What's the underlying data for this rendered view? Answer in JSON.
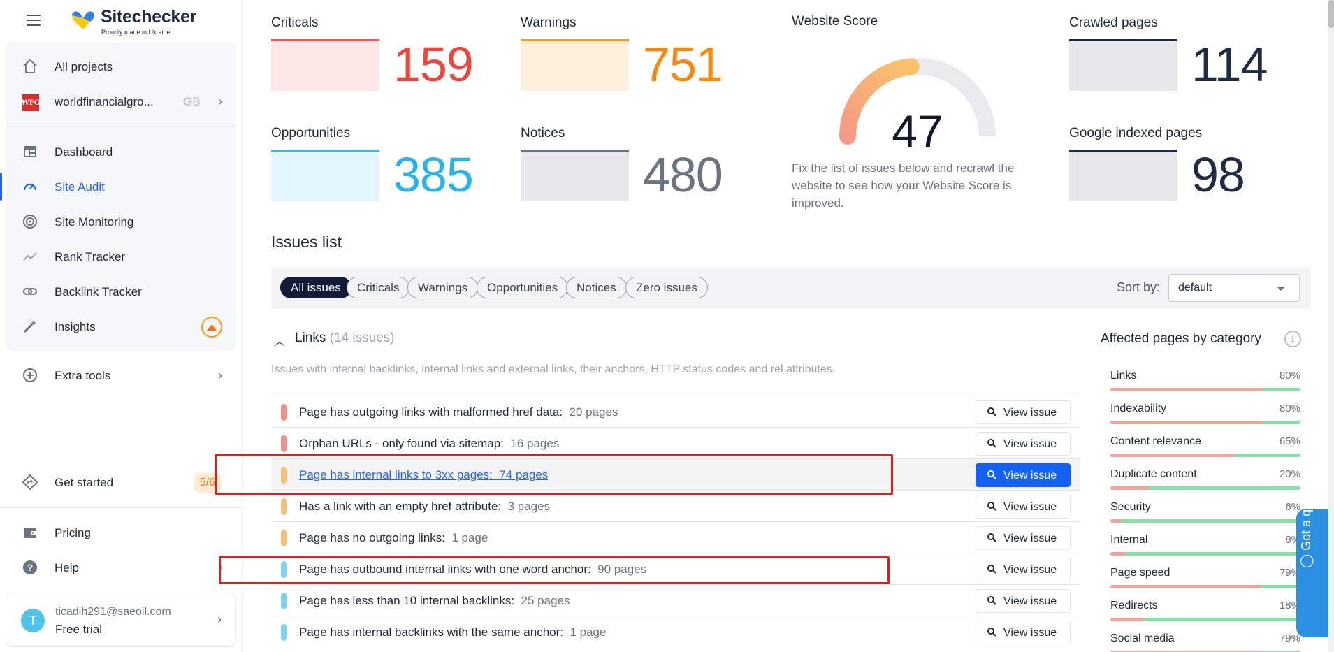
{
  "brand": {
    "name": "Sitechecker",
    "tagline": "Proudly made in Ukraine"
  },
  "sidebar": {
    "all_projects": "All projects",
    "project": {
      "name": "worldfinancialgro...",
      "region": "GB",
      "logo_text": "WFG"
    },
    "nav": [
      {
        "label": "Dashboard",
        "icon": "dashboard-icon"
      },
      {
        "label": "Site Audit",
        "icon": "gauge-icon",
        "active": true
      },
      {
        "label": "Site Monitoring",
        "icon": "monitoring-icon"
      },
      {
        "label": "Rank Tracker",
        "icon": "rank-icon"
      },
      {
        "label": "Backlink Tracker",
        "icon": "link-icon"
      },
      {
        "label": "Insights",
        "icon": "magic-wand-icon"
      }
    ],
    "extra_tools": "Extra tools",
    "get_started": {
      "label": "Get started",
      "count": "5/6"
    },
    "pricing": "Pricing",
    "help": "Help",
    "user": {
      "initial": "T",
      "email": "ticadih291@saeoil.com",
      "plan": "Free trial"
    }
  },
  "metrics": {
    "criticals": {
      "label": "Criticals",
      "value": "159",
      "color": "#f0453a",
      "box": "#fde7e7",
      "border": "#f05a51"
    },
    "warnings": {
      "label": "Warnings",
      "value": "751",
      "color": "#f5890f",
      "box": "#fff0dd",
      "border": "#f59a2c"
    },
    "opportunities": {
      "label": "Opportunities",
      "value": "385",
      "color": "#27b3ec",
      "box": "#e3f5fd",
      "border": "#35b8ee"
    },
    "notices": {
      "label": "Notices",
      "value": "480",
      "color": "#6b7280",
      "box": "#e5e7eb",
      "border": "#6b7280"
    },
    "crawled": {
      "label": "Crawled pages",
      "value": "114",
      "color": "#1f2a44",
      "box": "#e5e7eb",
      "border": "#1f2a44"
    },
    "indexed": {
      "label": "Google indexed pages",
      "value": "98",
      "color": "#1f2a44",
      "box": "#e5e7eb",
      "border": "#1f2a44"
    }
  },
  "score": {
    "title": "Website Score",
    "value": "47",
    "percent": 47,
    "description": "Fix the list of issues below and recrawl the website to see how your Website Score is improved."
  },
  "issues": {
    "title": "Issues list",
    "filters": [
      "All issues",
      "Criticals",
      "Warnings",
      "Opportunities",
      "Notices",
      "Zero issues"
    ],
    "sort_label": "Sort by:",
    "sort_value": "default",
    "group": {
      "title": "Links",
      "count": "(14 issues)",
      "description": "Issues with internal backlinks, internal links and external links, their anchors, HTTP status codes and rel attributes."
    },
    "view_label": "View issue",
    "rows": [
      {
        "text": "Page has outgoing links with malformed href data:",
        "pages": "20 pages",
        "severity": "#f0908a"
      },
      {
        "text": "Orphan URLs - only found via sitemap:",
        "pages": "16 pages",
        "severity": "#f0908a"
      },
      {
        "text": "Page has internal links to 3xx pages",
        "pages": "74 pages",
        "severity": "#f7c07a",
        "highlight": true
      },
      {
        "text": "Has a link with an empty href attribute:",
        "pages": "3 pages",
        "severity": "#f7c07a"
      },
      {
        "text": "Page has no outgoing links:",
        "pages": "1 page",
        "severity": "#f7c07a"
      },
      {
        "text": "Page has outbound internal links with one word anchor:",
        "pages": "90 pages",
        "severity": "#7fd3f2"
      },
      {
        "text": "Page has less than 10 internal backlinks:",
        "pages": "25 pages",
        "severity": "#7fd3f2"
      },
      {
        "text": "Page has internal backlinks with the same anchor:",
        "pages": "1 page",
        "severity": "#7fd3f2"
      }
    ]
  },
  "categories": {
    "title": "Affected pages by category",
    "items": [
      {
        "name": "Links",
        "pct": "80%",
        "fill": 80
      },
      {
        "name": "Indexability",
        "pct": "80%",
        "fill": 80
      },
      {
        "name": "Content relevance",
        "pct": "65%",
        "fill": 65
      },
      {
        "name": "Duplicate content",
        "pct": "20%",
        "fill": 20
      },
      {
        "name": "Security",
        "pct": "6%",
        "fill": 6
      },
      {
        "name": "Internal",
        "pct": "8%",
        "fill": 8
      },
      {
        "name": "Page speed",
        "pct": "79%",
        "fill": 79
      },
      {
        "name": "Redirects",
        "pct": "18%",
        "fill": 18
      },
      {
        "name": "Social media",
        "pct": "79%",
        "fill": 79
      }
    ]
  },
  "help_widget": "Got a question?"
}
